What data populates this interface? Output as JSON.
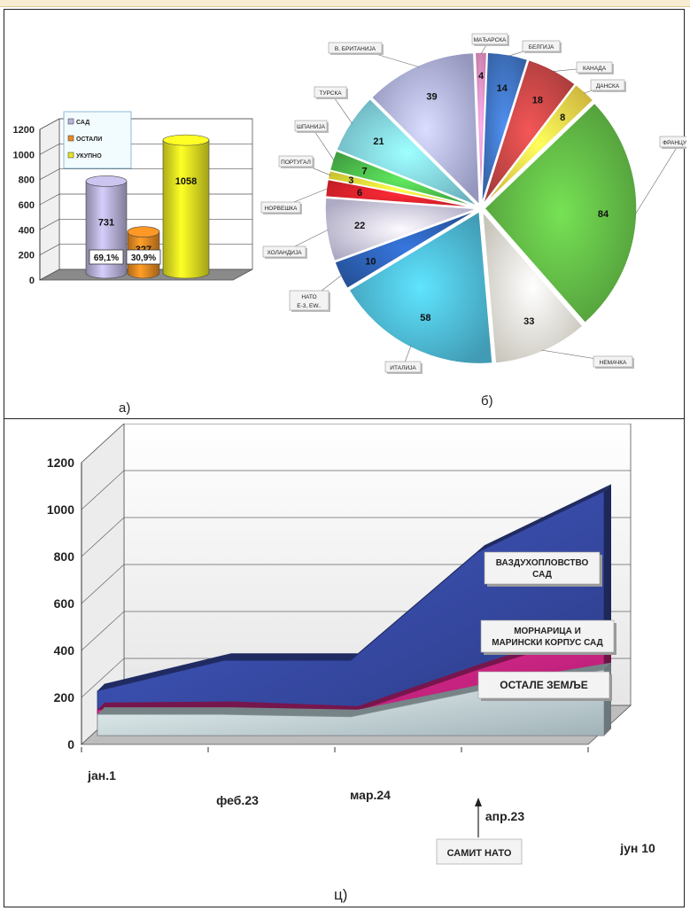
{
  "chart_data": [
    {
      "type": "bar",
      "panel_label": "а)",
      "ylim": [
        0,
        1200
      ],
      "yticks": [
        "0",
        "200",
        "400",
        "600",
        "800",
        "1000",
        "1200"
      ],
      "series": [
        {
          "name": "САД",
          "value": 731,
          "value_label": "731",
          "percent_label": "69,1%",
          "color": "#b9b3da"
        },
        {
          "name": "ОСТАЛИ",
          "value": 327,
          "value_label": "327",
          "percent_label": "30,9%",
          "color": "#e98a22"
        },
        {
          "name": "УКУПНО",
          "value": 1058,
          "value_label": "1058",
          "percent_label": "",
          "color": "#e7e622"
        }
      ],
      "legend_position": "top-left"
    },
    {
      "type": "pie",
      "panel_label": "б)",
      "slices": [
        {
          "label": "МАЂАРСКА",
          "value": 4,
          "value_label": "4",
          "color": "#e78fc2"
        },
        {
          "label": "БЕЛГИЈА",
          "value": 14,
          "value_label": "14",
          "color": "#3f73c1"
        },
        {
          "label": "КАНАДА",
          "value": 18,
          "value_label": "18",
          "color": "#c44545"
        },
        {
          "label": "ДАНСКА",
          "value": 8,
          "value_label": "8",
          "color": "#f4d84a"
        },
        {
          "label": "ФРАНЦУСКА",
          "value": 84,
          "value_label": "84",
          "color": "#5fb544"
        },
        {
          "label": "НЕМАЧКА",
          "value": 33,
          "value_label": "33",
          "color": "#ebe8dc"
        },
        {
          "label": "ИТАЛИЈА",
          "value": 58,
          "value_label": "58",
          "color": "#4cb6d4"
        },
        {
          "label": "НАТО E-3, EW..",
          "value": 10,
          "value_label": "10",
          "color": "#2c5fb2"
        },
        {
          "label": "ХОЛАНДИЈА",
          "value": 22,
          "value_label": "22",
          "color": "#cbc8e6"
        },
        {
          "label": "НОРВЕШКА",
          "value": 6,
          "value_label": "6",
          "color": "#e4222c"
        },
        {
          "label": "ПОРТУГАЛ",
          "value": 3,
          "value_label": "3",
          "color": "#efe53a"
        },
        {
          "label": "ШПАНИЈА",
          "value": 7,
          "value_label": "7",
          "color": "#4dbb4c"
        },
        {
          "label": "ТУРСКА",
          "value": 21,
          "value_label": "21",
          "color": "#7fd0df"
        },
        {
          "label": "В. БРИТАНИЈА",
          "value": 39,
          "value_label": "39",
          "color": "#aeb1de"
        }
      ]
    },
    {
      "type": "area",
      "panel_label": "ц)",
      "ylim": [
        0,
        1200
      ],
      "yticks": [
        "0",
        "200",
        "400",
        "600",
        "800",
        "1000",
        "1200"
      ],
      "categories": [
        "јан.1",
        "феб.23",
        "мар.24",
        "апр.23",
        "јун 10"
      ],
      "series": [
        {
          "name": "ОСТАЛЕ ЗЕМЉЕ",
          "values": [
            90,
            90,
            80,
            190,
            280
          ],
          "color": "#d6eef5"
        },
        {
          "name": "МОРНАРИЦА И МАРИНСКИ КОРПУС САД",
          "values": [
            110,
            115,
            95,
            280,
            450
          ],
          "color": "#d9268c"
        },
        {
          "name": "ВАЗДУХОПЛОВСТВО САД",
          "values": [
            190,
            320,
            320,
            780,
            1040
          ],
          "color": "#3a4fb0"
        }
      ],
      "annotation": {
        "label": "САМИТ НАТО",
        "at_category": "апр.23"
      }
    }
  ]
}
